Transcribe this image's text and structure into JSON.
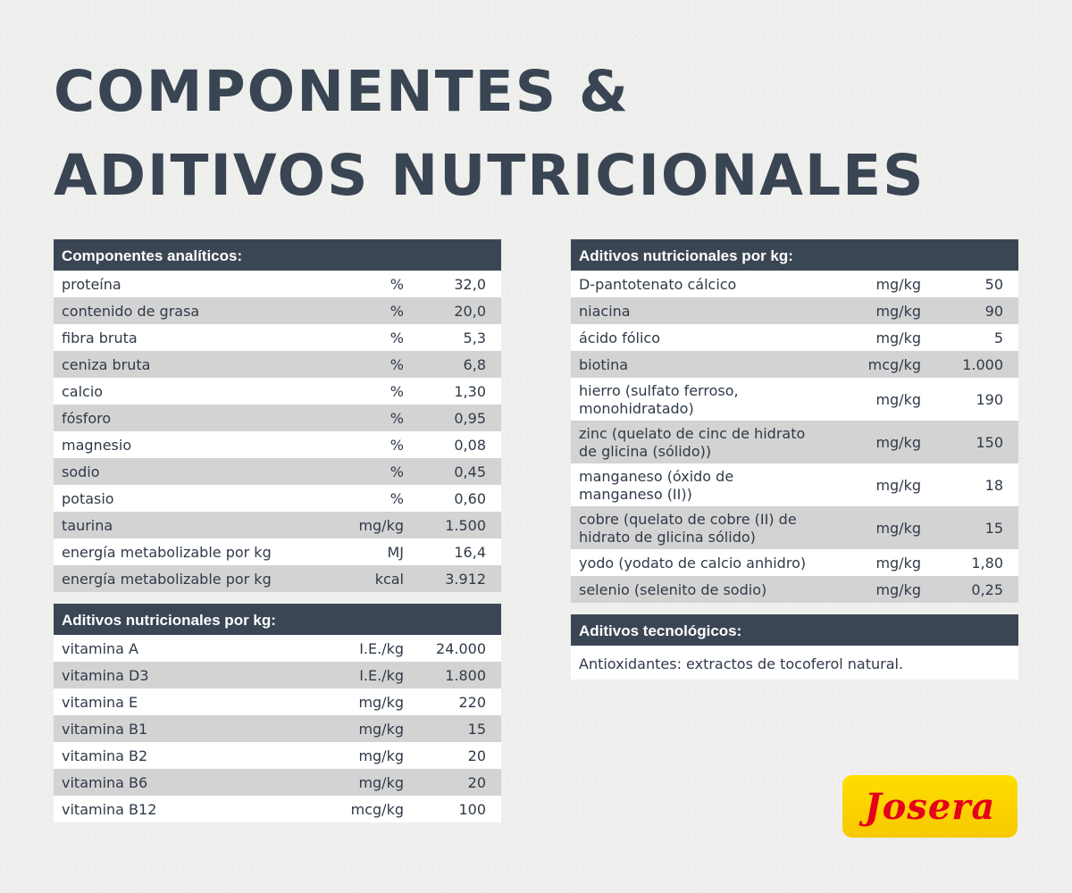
{
  "title": {
    "line1": "COMPONENTES &",
    "line2": "ADITIVOS NUTRICIONALES"
  },
  "analytical": {
    "header": "Componentes analíticos:",
    "rows": [
      {
        "name": "proteína",
        "unit": "%",
        "value": "32,0"
      },
      {
        "name": "contenido de grasa",
        "unit": "%",
        "value": "20,0"
      },
      {
        "name": "fibra bruta",
        "unit": "%",
        "value": "5,3"
      },
      {
        "name": "ceniza bruta",
        "unit": "%",
        "value": "6,8"
      },
      {
        "name": "calcio",
        "unit": "%",
        "value": "1,30"
      },
      {
        "name": "fósforo",
        "unit": "%",
        "value": "0,95"
      },
      {
        "name": "magnesio",
        "unit": "%",
        "value": "0,08"
      },
      {
        "name": "sodio",
        "unit": "%",
        "value": "0,45"
      },
      {
        "name": "potasio",
        "unit": "%",
        "value": "0,60"
      },
      {
        "name": "taurina",
        "unit": "mg/kg",
        "value": "1.500"
      },
      {
        "name": "energía metabolizable por kg",
        "unit": "MJ",
        "value": "16,4"
      },
      {
        "name": "energía metabolizable por kg",
        "unit": "kcal",
        "value": "3.912"
      }
    ]
  },
  "vitamins": {
    "header": "Aditivos nutricionales por kg:",
    "rows": [
      {
        "name": "vitamina A",
        "unit": "I.E./kg",
        "value": "24.000"
      },
      {
        "name": "vitamina D3",
        "unit": "I.E./kg",
        "value": "1.800"
      },
      {
        "name": "vitamina E",
        "unit": "mg/kg",
        "value": "220"
      },
      {
        "name": "vitamina B1",
        "unit": "mg/kg",
        "value": "15"
      },
      {
        "name": "vitamina B2",
        "unit": "mg/kg",
        "value": "20"
      },
      {
        "name": "vitamina B6",
        "unit": "mg/kg",
        "value": "20"
      },
      {
        "name": "vitamina B12",
        "unit": "mcg/kg",
        "value": "100"
      }
    ]
  },
  "minerals": {
    "header": "Aditivos nutricionales por kg:",
    "rows": [
      {
        "name": "D-pantotenato cálcico",
        "unit": "mg/kg",
        "value": "50"
      },
      {
        "name": "niacina",
        "unit": "mg/kg",
        "value": "90"
      },
      {
        "name": "ácido fólico",
        "unit": "mg/kg",
        "value": "5"
      },
      {
        "name": "biotina",
        "unit": "mcg/kg",
        "value": "1.000"
      },
      {
        "name": "hierro (sulfato ferroso, monohidratado)",
        "unit": "mg/kg",
        "value": "190"
      },
      {
        "name": "zinc (quelato de cinc de hidrato de glicina (sólido))",
        "unit": "mg/kg",
        "value": "150"
      },
      {
        "name": "manganeso (óxido de manganeso (II))",
        "unit": "mg/kg",
        "value": "18"
      },
      {
        "name": "cobre (quelato de cobre (II) de hidrato de glicina sólido)",
        "unit": "mg/kg",
        "value": "15"
      },
      {
        "name": "yodo (yodato de calcio anhidro)",
        "unit": "mg/kg",
        "value": "1,80"
      },
      {
        "name": "selenio (selenito de sodio)",
        "unit": "mg/kg",
        "value": "0,25"
      }
    ]
  },
  "technological": {
    "header": "Aditivos tecnológicos:",
    "text": "Antioxidantes: extractos de tocoferol natural."
  },
  "logo": {
    "text": "Josera"
  },
  "colors": {
    "header_bg": "#3b4655",
    "stripe": "#d3d3d3",
    "logo_bg": "#ffd800",
    "logo_text": "#e4001a"
  }
}
